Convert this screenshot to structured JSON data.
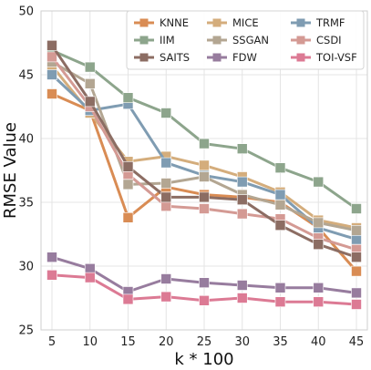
{
  "chart_data": {
    "type": "line",
    "title": "",
    "xlabel": "k * 100",
    "ylabel": "RMSE Value",
    "x": [
      5,
      10,
      15,
      20,
      25,
      30,
      35,
      40,
      45
    ],
    "x_ticks": [
      "5",
      "10",
      "15",
      "20",
      "25",
      "30",
      "35",
      "40",
      "45"
    ],
    "ylim": [
      25,
      50
    ],
    "y_ticks": [
      "25",
      "30",
      "35",
      "40",
      "45",
      "50"
    ],
    "grid": true,
    "legend_position": "top-right",
    "legend_columns": 3,
    "series": [
      {
        "name": "KNNE",
        "color": "#d98c54",
        "values": [
          43.5,
          42.2,
          33.8,
          36.2,
          35.6,
          35.4,
          35.0,
          33.0,
          29.6
        ]
      },
      {
        "name": "MICE",
        "color": "#d4ad7c",
        "values": [
          45.7,
          42.0,
          38.2,
          38.6,
          37.9,
          37.0,
          35.8,
          33.6,
          33.0
        ]
      },
      {
        "name": "TRMF",
        "color": "#7f9cb2",
        "values": [
          45.0,
          42.2,
          42.7,
          38.1,
          37.1,
          36.6,
          35.6,
          33.0,
          32.1
        ]
      },
      {
        "name": "IIM",
        "color": "#8da58c",
        "values": [
          46.9,
          45.6,
          43.2,
          42.0,
          39.6,
          39.2,
          37.7,
          36.6,
          34.5
        ]
      },
      {
        "name": "SSGAN",
        "color": "#b3a692",
        "values": [
          46.0,
          44.3,
          36.4,
          36.5,
          37.0,
          35.6,
          34.8,
          33.4,
          32.8
        ]
      },
      {
        "name": "CSDI",
        "color": "#d49a94",
        "values": [
          46.4,
          42.5,
          37.2,
          34.7,
          34.5,
          34.1,
          33.7,
          32.2,
          31.3
        ]
      },
      {
        "name": "SAITS",
        "color": "#8c6d63",
        "values": [
          47.3,
          42.9,
          37.8,
          35.4,
          35.4,
          35.2,
          33.2,
          31.7,
          30.7
        ]
      },
      {
        "name": "FDW",
        "color": "#977c9e",
        "values": [
          30.7,
          29.8,
          28.0,
          29.0,
          28.7,
          28.5,
          28.3,
          28.3,
          27.9
        ]
      },
      {
        "name": "TOI-VSF",
        "color": "#dc7a94",
        "values": [
          29.3,
          29.1,
          27.4,
          27.6,
          27.3,
          27.5,
          27.2,
          27.2,
          27.0
        ]
      }
    ]
  }
}
